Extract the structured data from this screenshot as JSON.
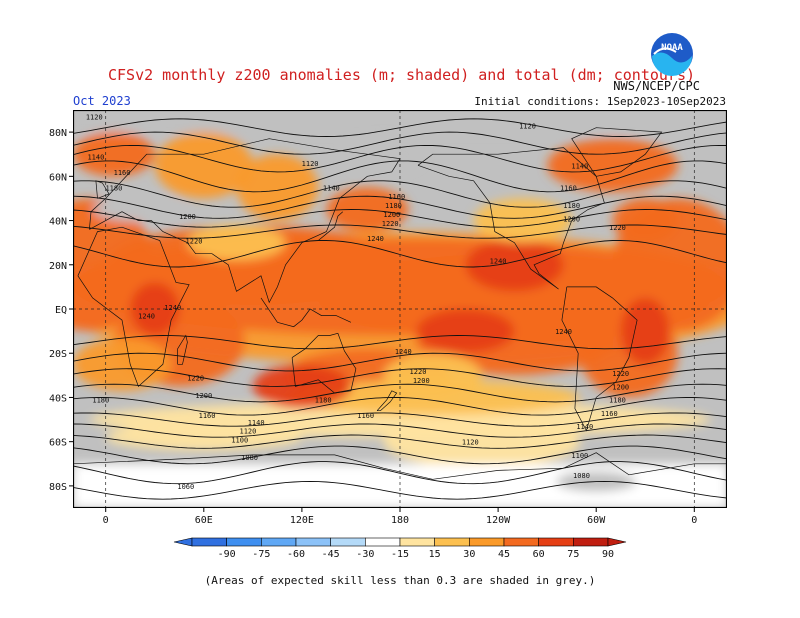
{
  "header": {
    "title": "CFSv2 monthly z200 anomalies (m; shaded) and total (dm; contours)",
    "source": "NWS/NCEP/CPC",
    "month": "Oct 2023",
    "initial_conditions": "Initial conditions: 1Sep2023-10Sep2023",
    "logo_text": "NOAA"
  },
  "footer": {
    "caption": "(Areas of expected skill less than 0.3 are shaded in grey.)"
  },
  "colors": {
    "grey": "#c0c0c0",
    "ocean_base": "#ffffff",
    "levels": [
      "#3070e0",
      "#3f8ff0",
      "#60a8f5",
      "#8cc2f8",
      "#b4daf8",
      "#ffffff",
      "#ffe4a0",
      "#fcc050",
      "#fa9a2a",
      "#f36a20",
      "#e53f14",
      "#c01e10"
    ]
  },
  "chart_data": {
    "type": "heatmap",
    "variable": "z200 anomaly (m)",
    "colorbar_ticks": [
      -90,
      -75,
      -60,
      -45,
      -30,
      -15,
      15,
      30,
      45,
      60,
      75,
      90
    ],
    "x_ticks": [
      "0",
      "60E",
      "120E",
      "180",
      "120W",
      "60W",
      "0"
    ],
    "y_ticks": [
      "80N",
      "60N",
      "40N",
      "20N",
      "EQ",
      "20S",
      "40S",
      "60S",
      "80S"
    ],
    "contour_labels": [
      {
        "value": "1120",
        "lon": -7,
        "lat": 87
      },
      {
        "value": "1140",
        "lon": -6,
        "lat": 69
      },
      {
        "value": "1160",
        "lon": 10,
        "lat": 62
      },
      {
        "value": "1180",
        "lon": 5,
        "lat": 55
      },
      {
        "value": "1120",
        "lon": 125,
        "lat": 66
      },
      {
        "value": "1140",
        "lon": 138,
        "lat": 55
      },
      {
        "value": "1160",
        "lon": 178,
        "lat": 51
      },
      {
        "value": "1180",
        "lon": 176,
        "lat": 47
      },
      {
        "value": "1200",
        "lon": 175,
        "lat": 43
      },
      {
        "value": "1220",
        "lon": 174,
        "lat": 39
      },
      {
        "value": "1240",
        "lon": 165,
        "lat": 32
      },
      {
        "value": "1200",
        "lon": 50,
        "lat": 42
      },
      {
        "value": "1220",
        "lon": 54,
        "lat": 31
      },
      {
        "value": "1120",
        "lon": 258,
        "lat": 83
      },
      {
        "value": "1140",
        "lon": 290,
        "lat": 65
      },
      {
        "value": "1160",
        "lon": 283,
        "lat": 55
      },
      {
        "value": "1180",
        "lon": 285,
        "lat": 47
      },
      {
        "value": "1200",
        "lon": 285,
        "lat": 41
      },
      {
        "value": "1220",
        "lon": 313,
        "lat": 37
      },
      {
        "value": "1240",
        "lon": 240,
        "lat": 22
      },
      {
        "value": "1240",
        "lon": 41,
        "lat": 1
      },
      {
        "value": "1240",
        "lon": 25,
        "lat": -3
      },
      {
        "value": "1240",
        "lon": 280,
        "lat": -10
      },
      {
        "value": "1240",
        "lon": 182,
        "lat": -19
      },
      {
        "value": "1220",
        "lon": 55,
        "lat": -31
      },
      {
        "value": "1200",
        "lon": 60,
        "lat": -39
      },
      {
        "value": "1180",
        "lon": -3,
        "lat": -41
      },
      {
        "value": "1160",
        "lon": 62,
        "lat": -48
      },
      {
        "value": "1140",
        "lon": 92,
        "lat": -51
      },
      {
        "value": "1120",
        "lon": 87,
        "lat": -55
      },
      {
        "value": "1100",
        "lon": 82,
        "lat": -59
      },
      {
        "value": "1080",
        "lon": 88,
        "lat": -67
      },
      {
        "value": "1060",
        "lon": 49,
        "lat": -80
      },
      {
        "value": "1180",
        "lon": 133,
        "lat": -41
      },
      {
        "value": "1160",
        "lon": 159,
        "lat": -48
      },
      {
        "value": "1220",
        "lon": 191,
        "lat": -28
      },
      {
        "value": "1200",
        "lon": 193,
        "lat": -32
      },
      {
        "value": "1120",
        "lon": 223,
        "lat": -60
      },
      {
        "value": "1100",
        "lon": 290,
        "lat": -66
      },
      {
        "value": "1080",
        "lon": 291,
        "lat": -75
      },
      {
        "value": "1220",
        "lon": 315,
        "lat": -29
      },
      {
        "value": "1200",
        "lon": 315,
        "lat": -35
      },
      {
        "value": "1180",
        "lon": 313,
        "lat": -41
      },
      {
        "value": "1160",
        "lon": 308,
        "lat": -47
      },
      {
        "value": "1140",
        "lon": 293,
        "lat": -53
      }
    ]
  }
}
